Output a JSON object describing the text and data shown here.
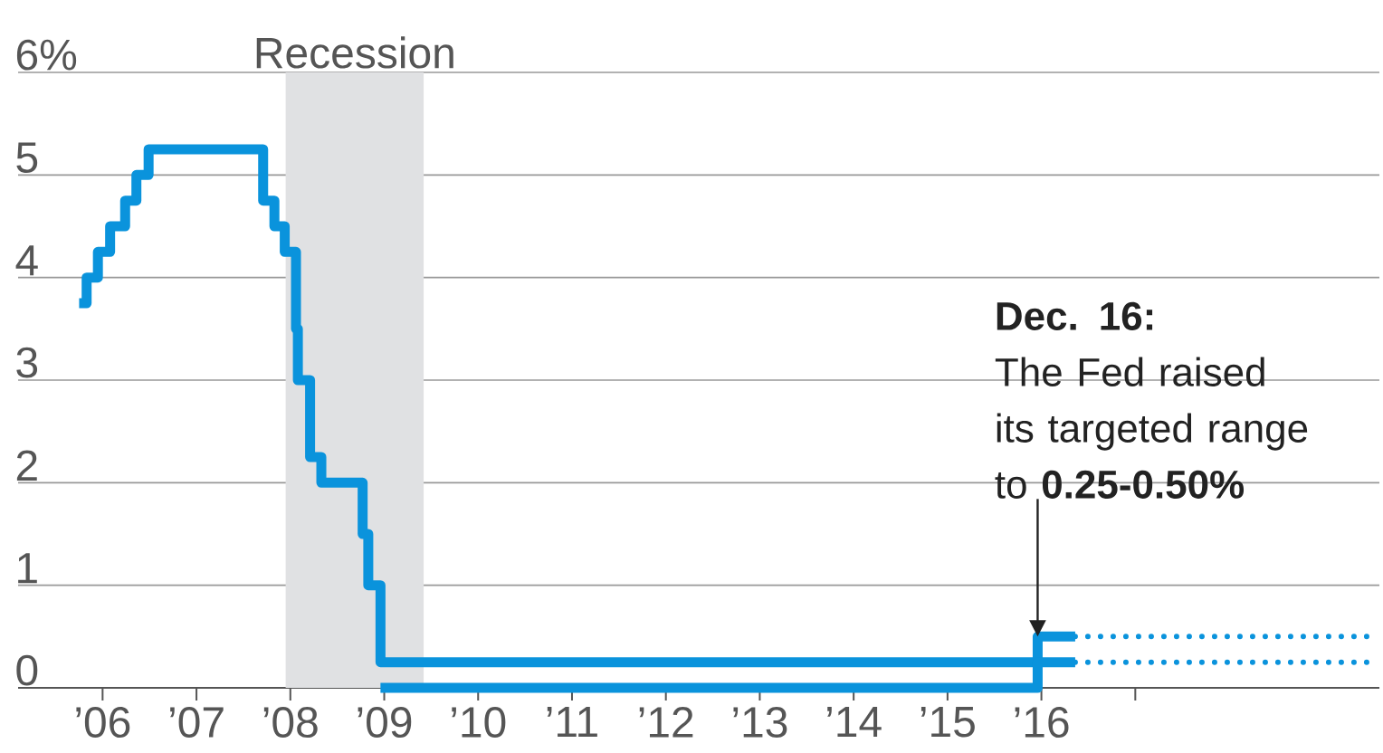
{
  "chart_data": {
    "type": "step",
    "x": [
      2005.75,
      2005.83,
      2005.95,
      2006.08,
      2006.24,
      2006.36,
      2006.49,
      2007.71,
      2007.83,
      2007.94,
      2008.06,
      2008.08,
      2008.21,
      2008.33,
      2008.77,
      2008.83,
      2008.96,
      2015.96,
      2016.36
    ],
    "series": [
      {
        "color": "#0a93dc",
        "values": [
          3.75,
          4.0,
          4.25,
          4.5,
          4.75,
          5.0,
          5.25,
          4.75,
          4.5,
          4.25,
          3.5,
          3.0,
          2.25,
          2.0,
          1.5,
          1.0,
          0.25,
          0.5,
          0.5
        ]
      },
      {
        "color": "#0a93dc",
        "x": [
          2008.96,
          2015.96,
          2016.36
        ],
        "values": [
          0,
          0.25,
          0.25
        ]
      },
      {
        "color": "#0a93dc",
        "x": [
          2016.36,
          2019.5
        ],
        "values": [
          0.5,
          0.5
        ],
        "line_style": "dotted"
      },
      {
        "color": "#0a93dc",
        "x": [
          2016.36,
          2019.5
        ],
        "values": [
          0.25,
          0.25
        ],
        "line_style": "dotted"
      }
    ],
    "xlim": [
      2005.1,
      2019.6
    ],
    "xticks": [
      {
        "value": 2006,
        "label": "’06"
      },
      {
        "value": 2007,
        "label": "’07"
      },
      {
        "value": 2008,
        "label": "’08"
      },
      {
        "value": 2009,
        "label": "’09"
      },
      {
        "value": 2010,
        "label": "’10"
      },
      {
        "value": 2011,
        "label": "’11"
      },
      {
        "value": 2012,
        "label": "’12"
      },
      {
        "value": 2013,
        "label": "’13"
      },
      {
        "value": 2014,
        "label": "’14"
      },
      {
        "value": 2015,
        "label": "’15"
      },
      {
        "value": 2016,
        "label": "’16"
      },
      {
        "value": 2017,
        "label": null
      }
    ],
    "ylim": [
      0,
      6
    ],
    "yticks": [
      0,
      1,
      2,
      3,
      4,
      5,
      {
        "value": 6,
        "label": "6%"
      }
    ],
    "grid": "y",
    "line_style": "solid",
    "bands": [
      {
        "axis": "x",
        "from": 2007.95,
        "to": 2009.42,
        "label": "Recession",
        "color": "#e0e1e3"
      }
    ],
    "annotations": [
      {
        "text": "**Dec. 16:** The Fed raised its targeted range to **0.25-0.50%**",
        "x": 2015.96,
        "y": 0.5
      }
    ]
  }
}
